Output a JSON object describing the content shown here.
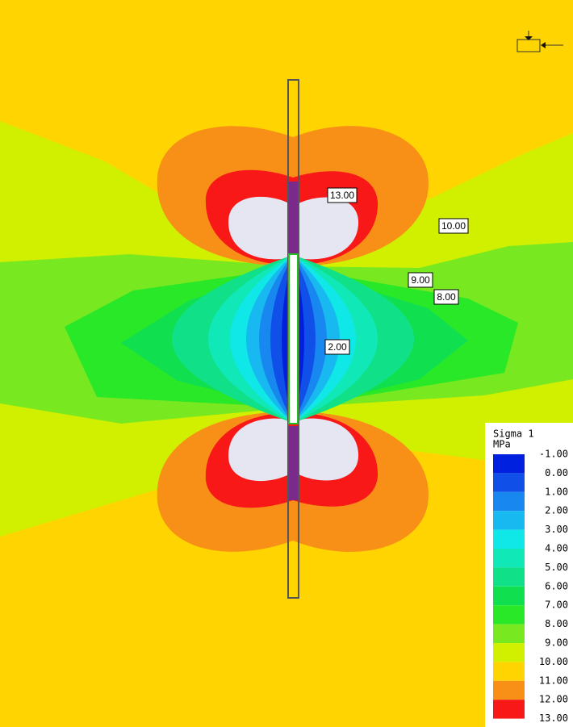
{
  "contour_labels": [
    "13.00",
    "10.00",
    "9.00",
    "8.00",
    "2.00"
  ],
  "legend": {
    "title": "Sigma 1",
    "unit": "MPa",
    "labels": [
      "-1.00",
      "0.00",
      "1.00",
      "2.00",
      "3.00",
      "4.00",
      "5.00",
      "6.00",
      "7.00",
      "8.00",
      "9.00",
      "10.00",
      "11.00",
      "12.00",
      "13.00"
    ],
    "colors": [
      "#0020e0",
      "#1050e8",
      "#1888f0",
      "#18b8f0",
      "#10e8e8",
      "#10e8b8",
      "#10e088",
      "#10e050",
      "#28e828",
      "#78e820",
      "#d0f000",
      "#ffd400",
      "#f89018",
      "#f81818"
    ]
  }
}
